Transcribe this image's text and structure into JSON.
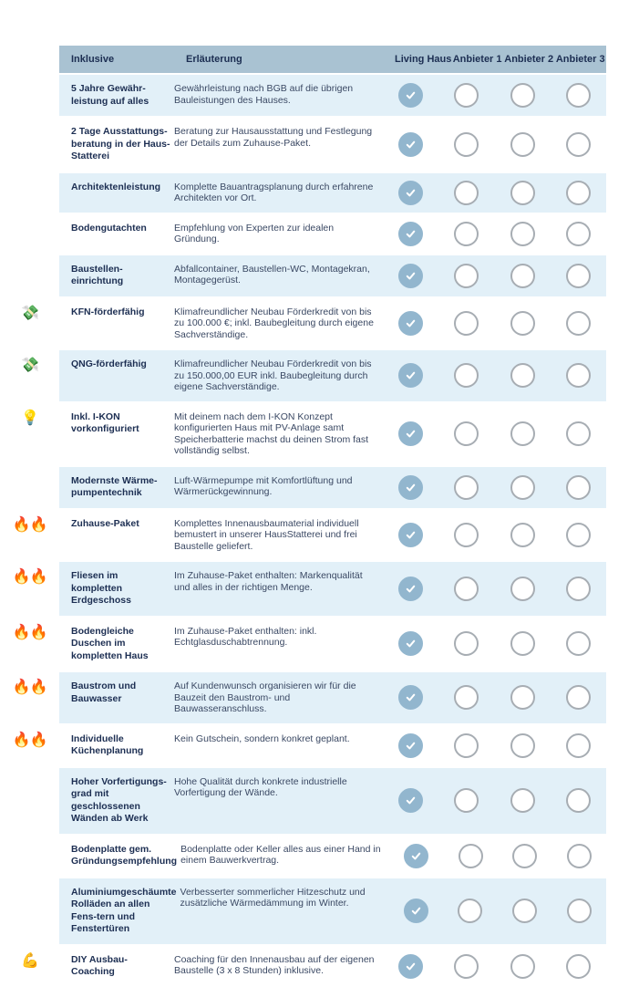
{
  "colors": {
    "header_bg": "#a9c2d2",
    "shaded_row_bg": "#e2f0f8",
    "check_fill": "#92b6ce",
    "circle_border": "#a7adb3",
    "text_dark": "#1c2e52",
    "text_body": "#3a4863"
  },
  "table": {
    "columns": {
      "feature": "Inklusive",
      "explanation": "Erläuterung",
      "providers": [
        "Living Haus",
        "Anbieter 1",
        "Anbieter 2",
        "Anbieter 3"
      ]
    },
    "rows": [
      {
        "icon": "",
        "icon_glyph": "",
        "label": "5 Jahre Gewähr-leistung auf alles",
        "desc": "Gewährleistung nach BGB auf die übrigen Bauleistungen des Hauses.",
        "checks": [
          true,
          false,
          false,
          false
        ]
      },
      {
        "icon": "",
        "icon_glyph": "",
        "label": "2 Tage Ausstattungs-beratung in der Haus-Statterei",
        "desc": "Beratung zur Hausausstattung und Festlegung der Details zum Zuhause-Paket.",
        "checks": [
          true,
          false,
          false,
          false
        ]
      },
      {
        "icon": "",
        "icon_glyph": "",
        "label": "Architektenleistung",
        "desc": "Komplette Bauantragsplanung durch erfahrene Architekten vor Ort.",
        "checks": [
          true,
          false,
          false,
          false
        ]
      },
      {
        "icon": "",
        "icon_glyph": "",
        "label": "Bodengutachten",
        "desc": "Empfehlung von Experten zur idealen Gründung.",
        "checks": [
          true,
          false,
          false,
          false
        ]
      },
      {
        "icon": "",
        "icon_glyph": "",
        "label": "Baustellen-einrichtung",
        "desc": "Abfallcontainer, Baustellen-WC, Montagekran, Montagegerüst.",
        "checks": [
          true,
          false,
          false,
          false
        ]
      },
      {
        "icon": "money-with-wings",
        "icon_glyph": "💸",
        "label": "KFN-förderfähig",
        "desc": "Klimafreundlicher Neubau Förderkredit von bis zu 100.000 €; inkl. Baubegleitung durch eigene Sachverständige.",
        "checks": [
          true,
          false,
          false,
          false
        ]
      },
      {
        "icon": "money-with-wings",
        "icon_glyph": "💸",
        "label": "QNG-förderfähig",
        "desc": "Klimafreundlicher Neubau Förderkredit von bis zu 150.000,00 EUR inkl. Baubegleitung durch eigene Sachverständige.",
        "checks": [
          true,
          false,
          false,
          false
        ]
      },
      {
        "icon": "light-bulb",
        "icon_glyph": "💡",
        "label": "Inkl. I-KON vorkonfiguriert",
        "desc": "Mit deinem nach dem I-KON Konzept konfigurierten Haus mit PV-Anlage samt Speicherbatterie machst du deinen Strom fast vollständig selbst.",
        "checks": [
          true,
          false,
          false,
          false
        ]
      },
      {
        "icon": "",
        "icon_glyph": "",
        "label": "Modernste Wärme-pumpentechnik",
        "desc": "Luft-Wärmepumpe mit Komfortlüftung und Wärmerückgewinnung.",
        "checks": [
          true,
          false,
          false,
          false
        ]
      },
      {
        "icon": "fire-double",
        "icon_glyph": "🔥🔥",
        "label": "Zuhause-Paket",
        "desc": "Komplettes Innenausbaumaterial individuell bemustert in unserer HausStatterei und frei Baustelle geliefert.",
        "checks": [
          true,
          false,
          false,
          false
        ]
      },
      {
        "icon": "fire-double",
        "icon_glyph": "🔥🔥",
        "label": "Fliesen im kompletten Erdgeschoss",
        "desc": "Im Zuhause-Paket enthalten: Markenqualität und alles in der richtigen Menge.",
        "checks": [
          true,
          false,
          false,
          false
        ]
      },
      {
        "icon": "fire-double",
        "icon_glyph": "🔥🔥",
        "label": "Bodengleiche Duschen im kompletten Haus",
        "desc": "Im Zuhause-Paket enthalten: inkl. Echtglasduschabtrennung.",
        "checks": [
          true,
          false,
          false,
          false
        ]
      },
      {
        "icon": "fire-double",
        "icon_glyph": "🔥🔥",
        "label": "Baustrom und Bauwasser",
        "desc": "Auf Kundenwunsch organisieren wir für die Bauzeit den Baustrom- und Bauwasseranschluss.",
        "checks": [
          true,
          false,
          false,
          false
        ]
      },
      {
        "icon": "fire-double",
        "icon_glyph": "🔥🔥",
        "label": "Individuelle Küchenplanung",
        "desc": "Kein Gutschein, sondern konkret geplant.",
        "checks": [
          true,
          false,
          false,
          false
        ]
      },
      {
        "icon": "",
        "icon_glyph": "",
        "label": "Hoher Vorfertigungs-grad mit geschlossenen Wänden ab Werk",
        "desc": "Hohe Qualität durch konkrete industrielle Vorfertigung der Wände.",
        "checks": [
          true,
          false,
          false,
          false
        ]
      },
      {
        "icon": "",
        "icon_glyph": "",
        "label": "Bodenplatte gem. Gründungsempfehlung",
        "desc": "Bodenplatte oder Keller alles aus einer Hand in einem Bauwerkvertrag.",
        "checks": [
          true,
          false,
          false,
          false
        ]
      },
      {
        "icon": "",
        "icon_glyph": "",
        "label": "Aluminiumgeschäumte Rolläden an allen Fens-tern und Fenstertüren",
        "desc": "Verbesserter sommerlicher Hitzeschutz und zusätzliche Wärmedämmung im Winter.",
        "checks": [
          true,
          false,
          false,
          false
        ]
      },
      {
        "icon": "flexed-biceps",
        "icon_glyph": "💪",
        "label": "DIY Ausbau-Coaching",
        "desc": "Coaching für den Innenausbau auf der eigenen Baustelle (3 x 8 Stunden) inklusive.",
        "checks": [
          true,
          false,
          false,
          false
        ]
      }
    ]
  }
}
